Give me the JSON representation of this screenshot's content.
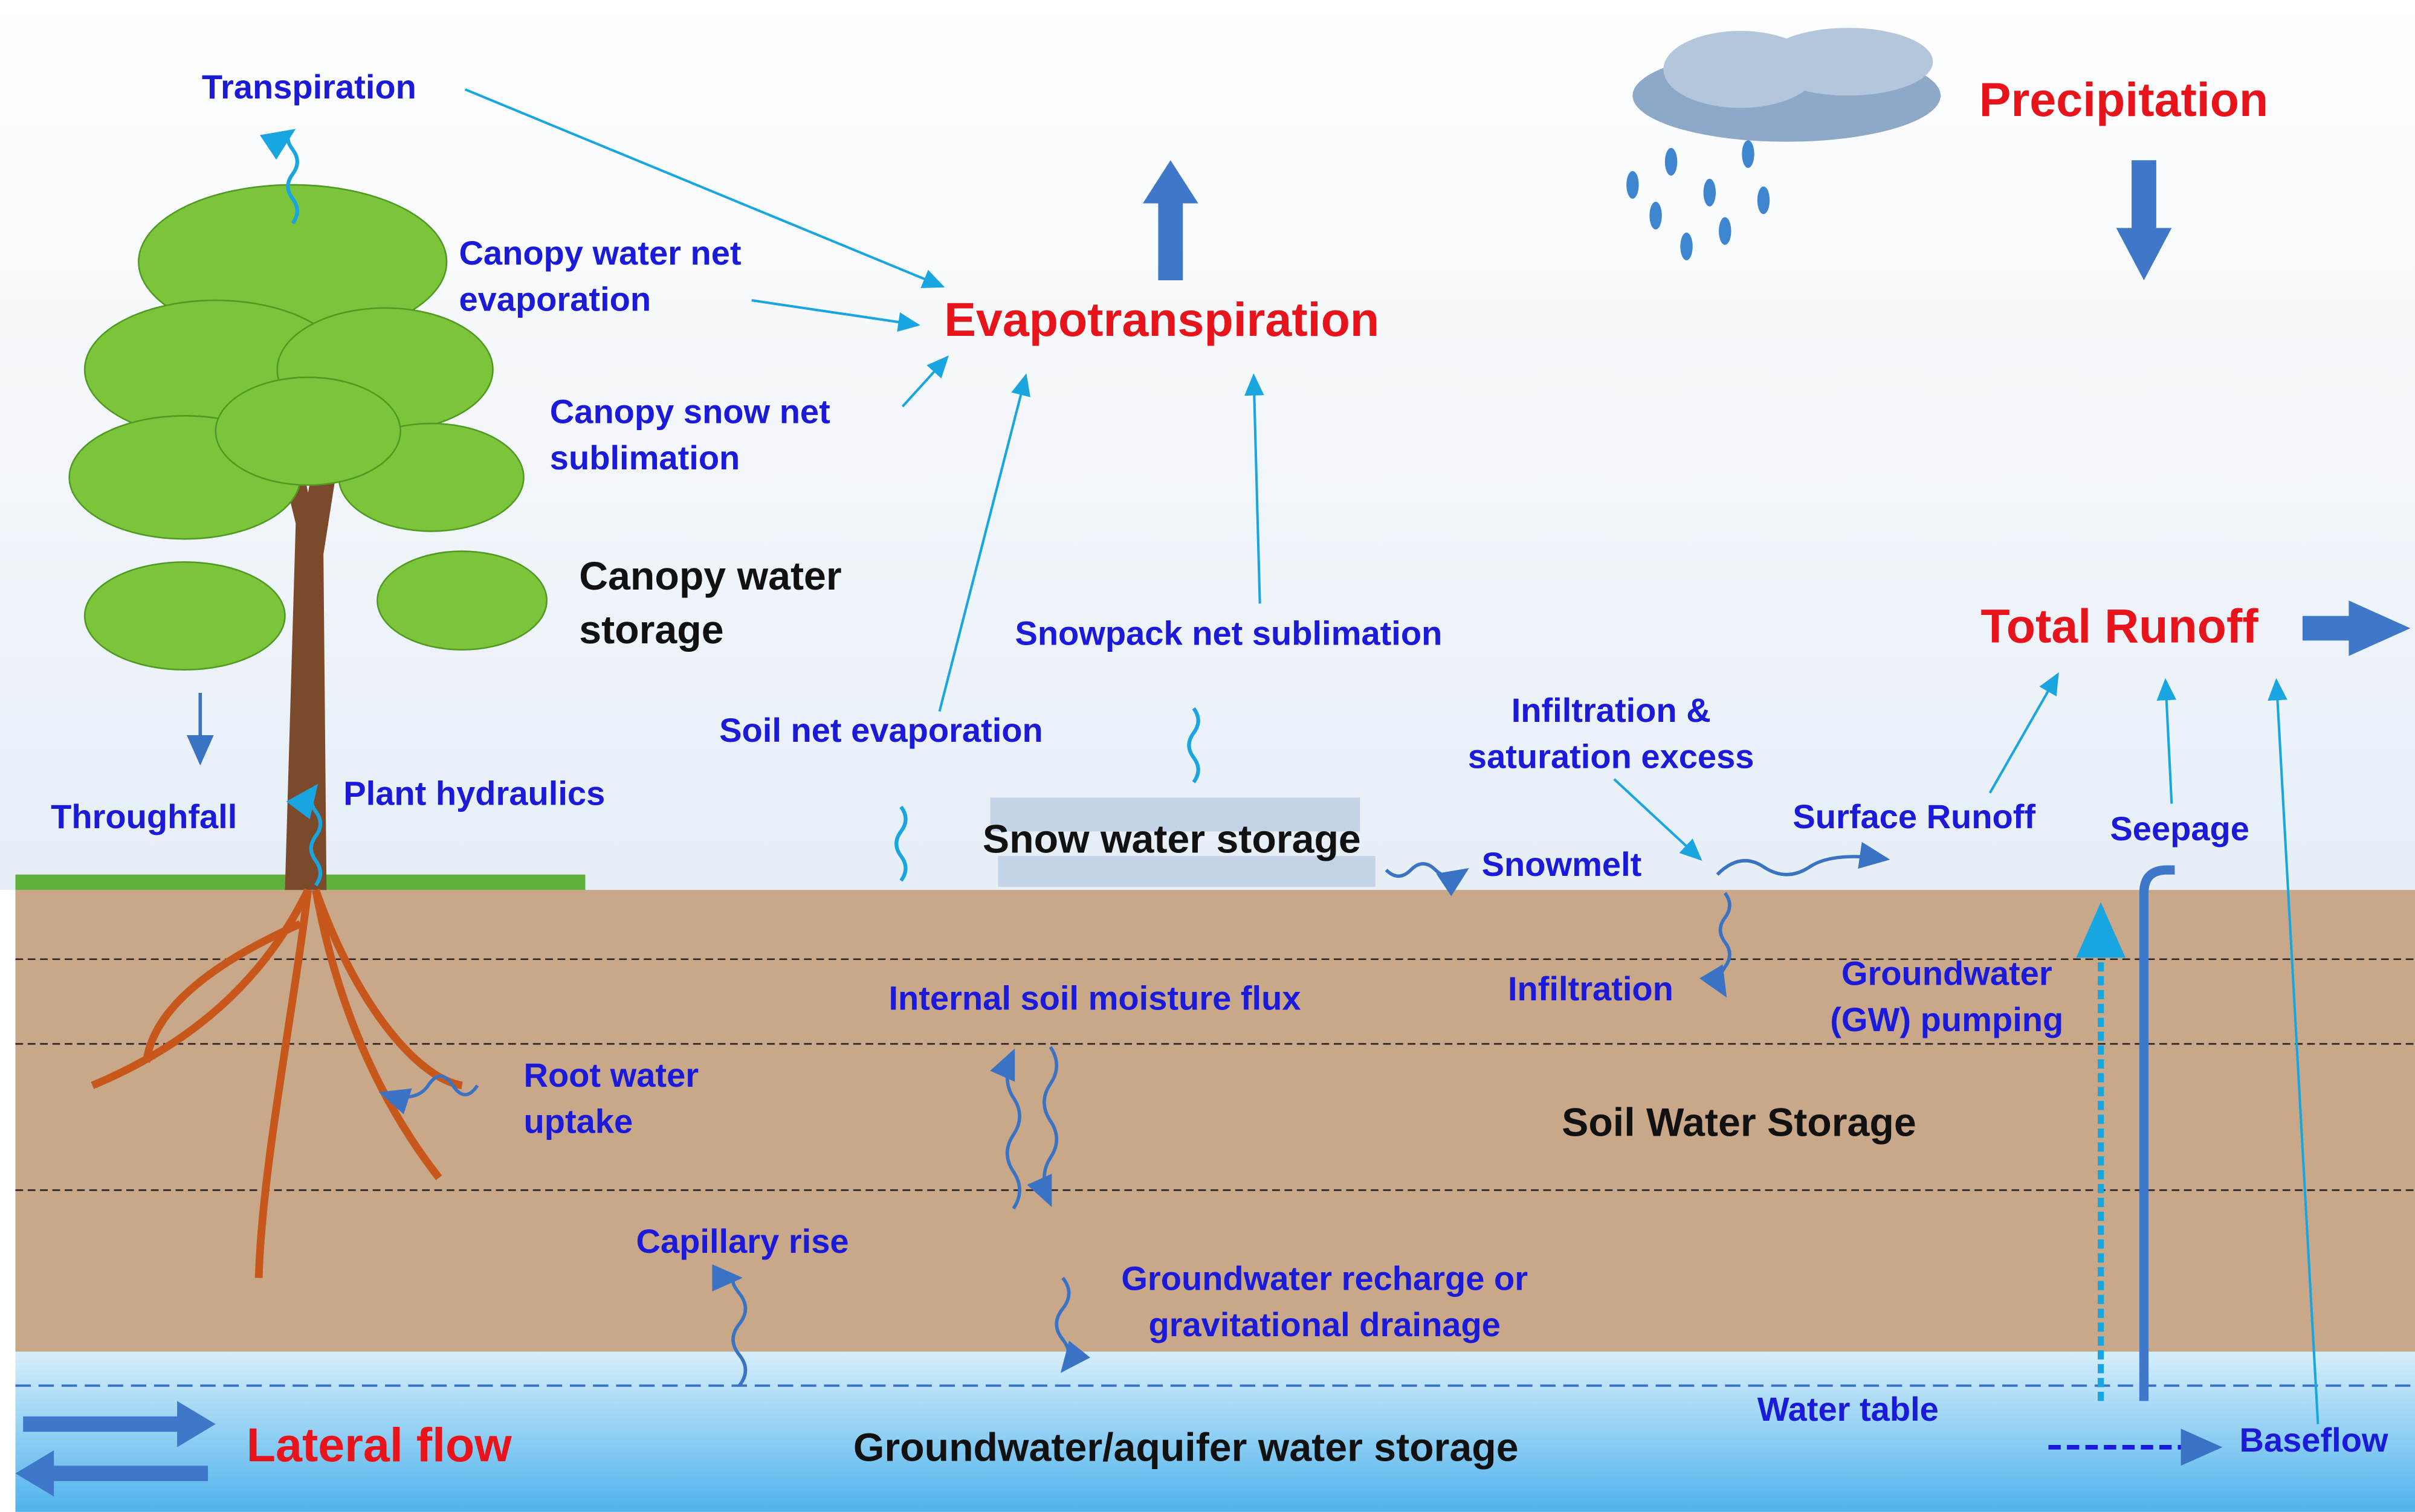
{
  "outputs": {
    "precipitation": "Precipitation",
    "evapotranspiration": "Evapotranspiration",
    "total_runoff": "Total Runoff",
    "lateral_flow": "Lateral flow"
  },
  "storages": {
    "canopy": [
      "Canopy water",
      "storage"
    ],
    "snow": "Snow water storage",
    "soil": "Soil Water Storage",
    "groundwater": "Groundwater/aquifer water storage"
  },
  "fluxes": {
    "transpiration": "Transpiration",
    "canopy_evaporation": [
      "Canopy water net",
      "evaporation"
    ],
    "canopy_sublimation": [
      "Canopy snow net",
      "sublimation"
    ],
    "throughfall": "Throughfall",
    "plant_hydraulics": "Plant hydraulics",
    "soil_evaporation": "Soil net evaporation",
    "snowpack_sublimation": "Snowpack net sublimation",
    "infiltration_excess": [
      "Infiltration &",
      "saturation excess"
    ],
    "surface_runoff": "Surface Runoff",
    "seepage": "Seepage",
    "snowmelt": "Snowmelt",
    "infiltration": "Infiltration",
    "gw_pumping": [
      "Groundwater",
      "(GW) pumping"
    ],
    "internal_flux": "Internal soil moisture flux",
    "root_uptake": [
      "Root water",
      "uptake"
    ],
    "capillary_rise": "Capillary rise",
    "recharge": [
      "Groundwater recharge or",
      "gravitational drainage"
    ],
    "water_table": "Water table",
    "baseflow": "Baseflow"
  }
}
